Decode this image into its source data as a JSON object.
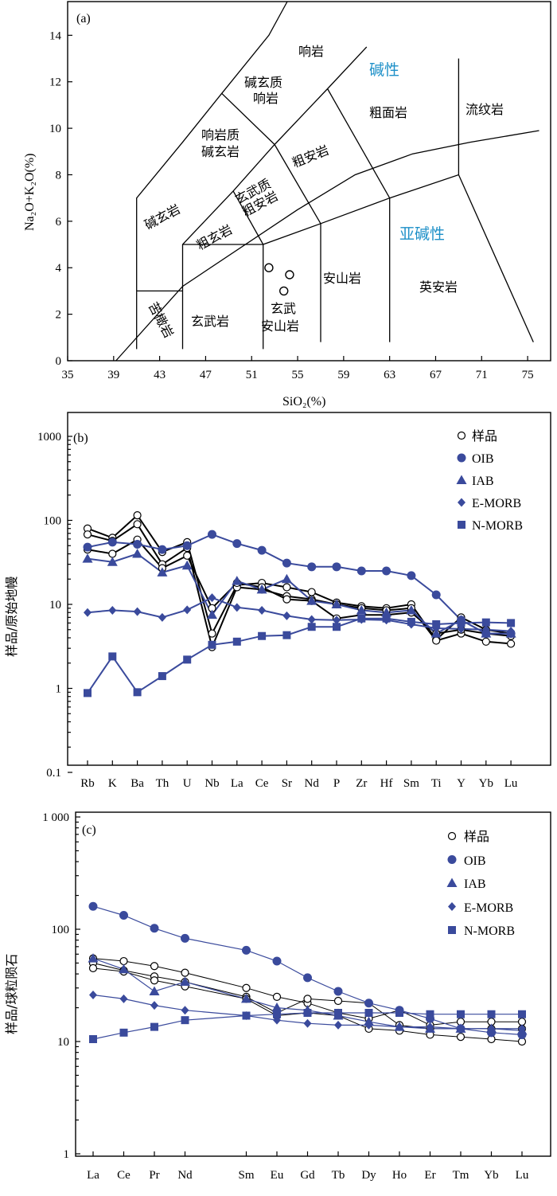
{
  "panel_a": {
    "tag": "(a)",
    "xlabel": "SiO₂(%)",
    "ylabel": "Na₂O+K₂O(%)",
    "fields": [
      {
        "name": "响岩",
        "kind": "field"
      },
      {
        "name": "碱玄质",
        "kind": "field"
      },
      {
        "name": "响岩",
        "kind": "field"
      },
      {
        "name": "粗面岩",
        "kind": "field"
      },
      {
        "name": "流纹岩",
        "kind": "field"
      },
      {
        "name": "响岩质",
        "kind": "field"
      },
      {
        "name": "碱玄岩",
        "kind": "field"
      },
      {
        "name": "粗安岩",
        "kind": "field"
      },
      {
        "name": "玄武质",
        "kind": "field"
      },
      {
        "name": "粗安岩",
        "kind": "field"
      },
      {
        "name": "碱玄岩",
        "kind": "field"
      },
      {
        "name": "粗玄岩",
        "kind": "field"
      },
      {
        "name": "安山岩",
        "kind": "field"
      },
      {
        "name": "英安岩",
        "kind": "field"
      },
      {
        "name": "玄武岩",
        "kind": "field"
      },
      {
        "name": "玄武",
        "kind": "field"
      },
      {
        "name": "安山岩",
        "kind": "field"
      },
      {
        "name": "苦橄岩",
        "kind": "field"
      }
    ],
    "series_labels": [
      "碱性",
      "亚碱性"
    ]
  },
  "panel_b": {
    "tag": "(b)",
    "ylabel": "样品/原始地幔",
    "legend": [
      "样品",
      "OIB",
      "IAB",
      "E-MORB",
      "N-MORB"
    ]
  },
  "panel_c": {
    "tag": "(c)",
    "ylabel": "样品/球粒陨石",
    "legend": [
      "样品",
      "OIB",
      "IAB",
      "E-MORB",
      "N-MORB"
    ]
  },
  "colors": {
    "blue_series": "#3a4a9c",
    "sample_line": "#000000",
    "alkali_label": "#1e90c8"
  },
  "chart_data": [
    {
      "type": "scatter",
      "title": "(a)",
      "xlabel": "SiO₂(%)",
      "ylabel": "Na₂O+K₂O(%)",
      "xlim": [
        35,
        77
      ],
      "ylim": [
        0,
        15
      ],
      "xticks": [
        35,
        39,
        43,
        47,
        51,
        55,
        59,
        63,
        67,
        71,
        75
      ],
      "yticks": [
        0,
        2,
        4,
        6,
        8,
        10,
        12,
        14
      ],
      "series": [
        {
          "name": "",
          "x": [
            52.5,
            54.3,
            53.8
          ],
          "y": [
            4.0,
            3.7,
            3.0
          ]
        }
      ]
    },
    {
      "type": "line",
      "title": "(b)",
      "ylabel": "样品/原始地幔",
      "yscale": "log",
      "ylim": [
        0.1,
        1000
      ],
      "yticks": [
        0.1,
        1,
        10,
        100,
        1000
      ],
      "categories": [
        "Rb",
        "K",
        "Ba",
        "Th",
        "U",
        "Nb",
        "La",
        "Ce",
        "Sr",
        "Nd",
        "P",
        "Zr",
        "Hf",
        "Sm",
        "Ti",
        "Y",
        "Yb",
        "Lu"
      ],
      "series": [
        {
          "name": "样品",
          "values": [
            80,
            62,
            115,
            42,
            55,
            4.5,
            17,
            18,
            16,
            14,
            10.5,
            9.5,
            9,
            10,
            3.8,
            7,
            5,
            4.5
          ]
        },
        {
          "name": "样品",
          "values": [
            68,
            57,
            90,
            30,
            47,
            3.1,
            16,
            15,
            12.5,
            11.5,
            10,
            9,
            8.5,
            9,
            3.7,
            4.5,
            3.6,
            3.4
          ]
        },
        {
          "name": "样品",
          "values": [
            45,
            40,
            59,
            27,
            38,
            9,
            18,
            16,
            11.5,
            11,
            6.8,
            7.5,
            7.5,
            8,
            4.5,
            5,
            4.5,
            4.2
          ]
        },
        {
          "name": "OIB",
          "values": [
            48,
            55,
            52,
            45,
            50,
            68,
            53,
            44,
            31,
            28,
            28,
            25,
            25,
            22,
            13,
            6.5,
            4.5,
            4.5
          ]
        },
        {
          "name": "IAB",
          "values": [
            35,
            32,
            40,
            24,
            29,
            7.5,
            19,
            15,
            20,
            11,
            10,
            8.5,
            8,
            8.5,
            4.5,
            6.5,
            4.5,
            4.5
          ]
        },
        {
          "name": "E-MORB",
          "values": [
            8,
            8.5,
            8.2,
            7,
            8.6,
            12,
            9.2,
            8.5,
            7.3,
            6.6,
            6.5,
            6.6,
            6.5,
            5.8,
            5.2,
            5.1,
            5.0,
            4.8
          ]
        },
        {
          "name": "N-MORB",
          "values": [
            0.88,
            2.4,
            0.9,
            1.4,
            2.2,
            3.3,
            3.6,
            4.2,
            4.3,
            5.4,
            5.4,
            6.8,
            6.8,
            6.2,
            5.8,
            6.0,
            6.1,
            6.0
          ]
        }
      ]
    },
    {
      "type": "line",
      "title": "(c)",
      "ylabel": "样品/球粒陨石",
      "yscale": "log",
      "ylim": [
        1,
        1000
      ],
      "yticks": [
        1,
        10,
        100,
        1000
      ],
      "ytick_labels": [
        "1",
        "10",
        "100",
        "1 000"
      ],
      "categories": [
        "La",
        "Ce",
        "Pr",
        "Nd",
        "",
        "Sm",
        "Eu",
        "Gd",
        "Tb",
        "Dy",
        "Ho",
        "Er",
        "Tm",
        "Yb",
        "Lu"
      ],
      "series": [
        {
          "name": "样品",
          "values": [
            55,
            52,
            47,
            41,
            null,
            30,
            25,
            22,
            18,
            16,
            19,
            14,
            15,
            15,
            15
          ]
        },
        {
          "name": "样品",
          "values": [
            50,
            43,
            38,
            34,
            null,
            25,
            18,
            24,
            23,
            22,
            14,
            13,
            13,
            13,
            13
          ]
        },
        {
          "name": "样品",
          "values": [
            45,
            42,
            35,
            31,
            null,
            24,
            17,
            18,
            17,
            13,
            12.5,
            11.5,
            11,
            10.5,
            10
          ]
        },
        {
          "name": "OIB",
          "values": [
            160,
            133,
            102,
            83,
            null,
            65,
            52,
            37,
            28,
            22,
            19,
            16,
            13,
            12,
            11.5
          ]
        },
        {
          "name": "IAB",
          "values": [
            55,
            44,
            28,
            34,
            null,
            24,
            20,
            19,
            17,
            15,
            13.5,
            13,
            13,
            13,
            12.5
          ]
        },
        {
          "name": "E-MORB",
          "values": [
            26,
            24,
            21,
            19,
            null,
            17,
            15.5,
            14.5,
            14,
            14,
            13.5,
            13.5,
            13,
            13,
            13
          ]
        },
        {
          "name": "N-MORB",
          "values": [
            10.5,
            12,
            13.5,
            15.5,
            null,
            17,
            17.5,
            18,
            18,
            18,
            18,
            17.5,
            17.5,
            17.5,
            17.5
          ]
        }
      ]
    }
  ]
}
